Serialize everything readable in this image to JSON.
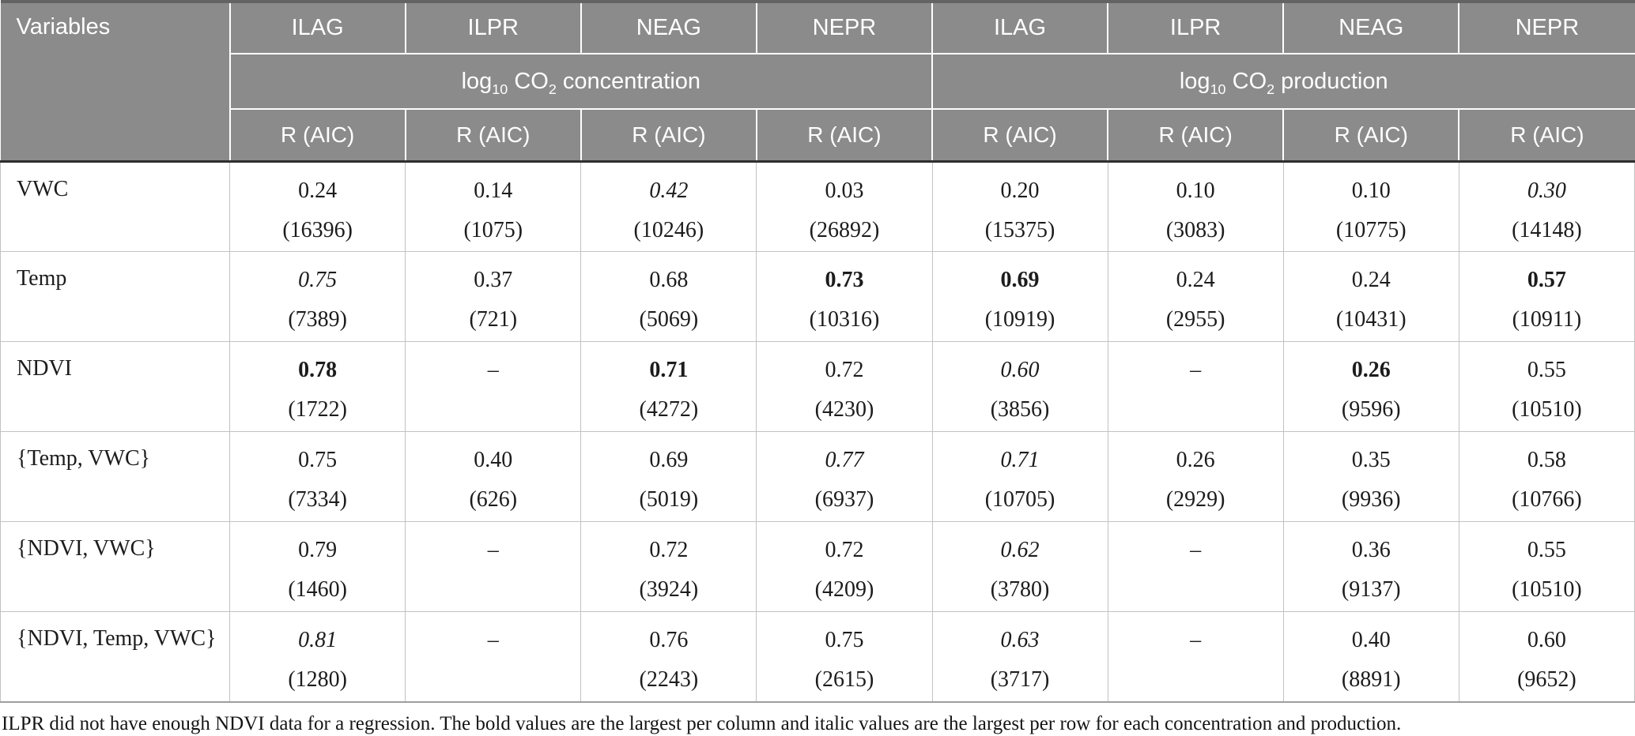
{
  "table": {
    "variables_label": "Variables",
    "sites": [
      "ILAG",
      "ILPR",
      "NEAG",
      "NEPR",
      "ILAG",
      "ILPR",
      "NEAG",
      "NEPR"
    ],
    "groups": [
      {
        "pre": "log",
        "sub1": "10",
        "mid": " CO",
        "sub2": "2",
        "post": " concentration"
      },
      {
        "pre": "log",
        "sub1": "10",
        "mid": " CO",
        "sub2": "2",
        "post": " production"
      }
    ],
    "stat_label": "R (AIC)",
    "empty_value": "–",
    "rows": [
      {
        "variable": "VWC",
        "cells": [
          {
            "r": "0.24",
            "aic": "(16396)",
            "style": "normal"
          },
          {
            "r": "0.14",
            "aic": "(1075)",
            "style": "normal"
          },
          {
            "r": "0.42",
            "aic": "(10246)",
            "style": "italic"
          },
          {
            "r": "0.03",
            "aic": "(26892)",
            "style": "normal"
          },
          {
            "r": "0.20",
            "aic": "(15375)",
            "style": "normal"
          },
          {
            "r": "0.10",
            "aic": "(3083)",
            "style": "normal"
          },
          {
            "r": "0.10",
            "aic": "(10775)",
            "style": "normal"
          },
          {
            "r": "0.30",
            "aic": "(14148)",
            "style": "italic"
          }
        ]
      },
      {
        "variable": "Temp",
        "cells": [
          {
            "r": "0.75",
            "aic": "(7389)",
            "style": "italic"
          },
          {
            "r": "0.37",
            "aic": "(721)",
            "style": "normal"
          },
          {
            "r": "0.68",
            "aic": "(5069)",
            "style": "normal"
          },
          {
            "r": "0.73",
            "aic": "(10316)",
            "style": "bold"
          },
          {
            "r": "0.69",
            "aic": "(10919)",
            "style": "bold"
          },
          {
            "r": "0.24",
            "aic": "(2955)",
            "style": "normal"
          },
          {
            "r": "0.24",
            "aic": "(10431)",
            "style": "normal"
          },
          {
            "r": "0.57",
            "aic": "(10911)",
            "style": "bold"
          }
        ]
      },
      {
        "variable": "NDVI",
        "cells": [
          {
            "r": "0.78",
            "aic": "(1722)",
            "style": "bold"
          },
          {
            "r": "–",
            "aic": "",
            "style": "normal"
          },
          {
            "r": "0.71",
            "aic": "(4272)",
            "style": "bold"
          },
          {
            "r": "0.72",
            "aic": "(4230)",
            "style": "normal"
          },
          {
            "r": "0.60",
            "aic": "(3856)",
            "style": "italic"
          },
          {
            "r": "–",
            "aic": "",
            "style": "normal"
          },
          {
            "r": "0.26",
            "aic": "(9596)",
            "style": "bold"
          },
          {
            "r": "0.55",
            "aic": "(10510)",
            "style": "normal"
          }
        ]
      },
      {
        "variable": "{Temp, VWC}",
        "cells": [
          {
            "r": "0.75",
            "aic": "(7334)",
            "style": "normal"
          },
          {
            "r": "0.40",
            "aic": "(626)",
            "style": "normal"
          },
          {
            "r": "0.69",
            "aic": "(5019)",
            "style": "normal"
          },
          {
            "r": "0.77",
            "aic": "(6937)",
            "style": "italic"
          },
          {
            "r": "0.71",
            "aic": "(10705)",
            "style": "italic"
          },
          {
            "r": "0.26",
            "aic": "(2929)",
            "style": "normal"
          },
          {
            "r": "0.35",
            "aic": "(9936)",
            "style": "normal"
          },
          {
            "r": "0.58",
            "aic": "(10766)",
            "style": "normal"
          }
        ]
      },
      {
        "variable": "{NDVI, VWC}",
        "cells": [
          {
            "r": "0.79",
            "aic": "(1460)",
            "style": "normal"
          },
          {
            "r": "–",
            "aic": "",
            "style": "normal"
          },
          {
            "r": "0.72",
            "aic": "(3924)",
            "style": "normal"
          },
          {
            "r": "0.72",
            "aic": "(4209)",
            "style": "normal"
          },
          {
            "r": "0.62",
            "aic": "(3780)",
            "style": "italic"
          },
          {
            "r": "–",
            "aic": "",
            "style": "normal"
          },
          {
            "r": "0.36",
            "aic": "(9137)",
            "style": "normal"
          },
          {
            "r": "0.55",
            "aic": "(10510)",
            "style": "normal"
          }
        ]
      },
      {
        "variable": "{NDVI, Temp, VWC}",
        "cells": [
          {
            "r": "0.81",
            "aic": "(1280)",
            "style": "italic"
          },
          {
            "r": "–",
            "aic": "",
            "style": "normal"
          },
          {
            "r": "0.76",
            "aic": "(2243)",
            "style": "normal"
          },
          {
            "r": "0.75",
            "aic": "(2615)",
            "style": "normal"
          },
          {
            "r": "0.63",
            "aic": "(3717)",
            "style": "italic"
          },
          {
            "r": "–",
            "aic": "",
            "style": "normal"
          },
          {
            "r": "0.40",
            "aic": "(8891)",
            "style": "normal"
          },
          {
            "r": "0.60",
            "aic": "(9652)",
            "style": "normal"
          }
        ]
      }
    ],
    "footnote": "ILPR did not have enough NDVI data for a regression. The bold values are the largest per column and italic values are the largest per row for each concentration and production.",
    "colors": {
      "header_bg": "#8b8b8b",
      "header_text": "#ffffff",
      "body_text": "#1c1c1c",
      "grid_line": "#c2c2c2",
      "header_divider": "#2e2e2e",
      "table_bottom": "#9e9e9e"
    }
  }
}
